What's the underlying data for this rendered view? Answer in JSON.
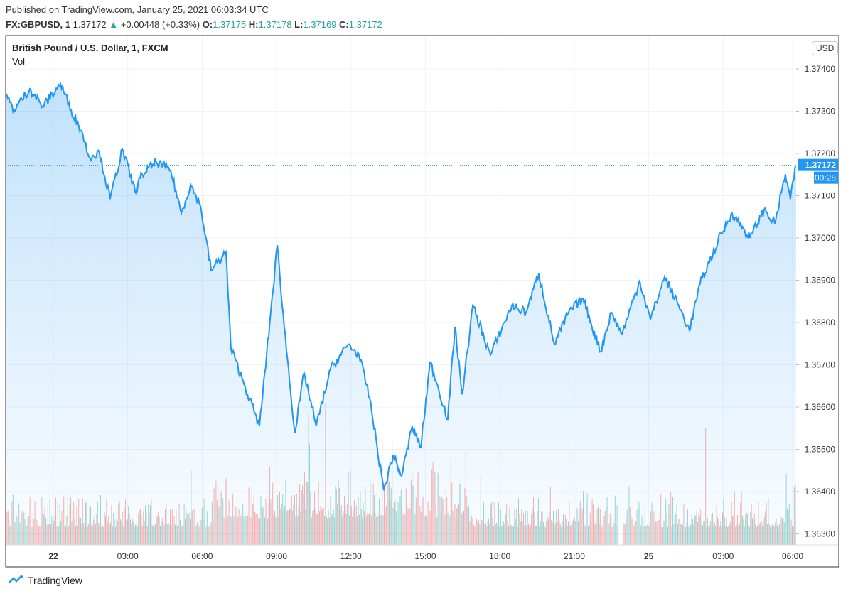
{
  "header": {
    "published": "Published on TradingView.com, January 25, 2021 06:03:34 UTC",
    "symbol": "FX:GBPUSD, 1",
    "last": "1.37172",
    "change": "+0.00448 (+0.33%)",
    "o_label": "O:",
    "o": "1.37175",
    "h_label": "H:",
    "h": "1.37178",
    "l_label": "L:",
    "l": "1.37169",
    "c_label": "C:",
    "c": "1.37172"
  },
  "legend": {
    "title": "British Pound / U.S. Dollar, 1, FXCM",
    "vol": "Vol"
  },
  "currency": "USD",
  "price_label": "1.37172",
  "countdown": "00:28",
  "footer": {
    "brand": "TradingView"
  },
  "colors": {
    "line": "#2196f3",
    "up": "#26a69a",
    "down": "#ef5350"
  },
  "chart_data": {
    "type": "area",
    "title": "British Pound / U.S. Dollar, 1, FXCM",
    "xlabel": "",
    "ylabel": "USD",
    "ylim": [
      1.3628,
      1.3748
    ],
    "yticks": [
      "1.37400",
      "1.37300",
      "1.37200",
      "1.37100",
      "1.37000",
      "1.36900",
      "1.36800",
      "1.36700",
      "1.36600",
      "1.36500",
      "1.36400",
      "1.36300"
    ],
    "xticks": [
      {
        "label": "22",
        "h": 0,
        "bold": true
      },
      {
        "label": "03:00",
        "h": 3
      },
      {
        "label": "06:00",
        "h": 6
      },
      {
        "label": "09:00",
        "h": 9
      },
      {
        "label": "12:00",
        "h": 12
      },
      {
        "label": "15:00",
        "h": 15
      },
      {
        "label": "18:00",
        "h": 18
      },
      {
        "label": "21:00",
        "h": 21
      },
      {
        "label": "25",
        "h": 24,
        "bold": true
      },
      {
        "label": "03:00",
        "h": 27
      },
      {
        "label": "06:00",
        "h": 29.8
      }
    ],
    "x_unit": "trading hours from Jan 22 00:00 (weekend gap removed)",
    "series": [
      {
        "name": "GBPUSD close",
        "points": [
          [
            -1.92,
            1.37336
          ],
          [
            -1.58,
            1.37303
          ],
          [
            -0.95,
            1.37353
          ],
          [
            -0.43,
            1.37311
          ],
          [
            0.29,
            1.37365
          ],
          [
            0.72,
            1.37303
          ],
          [
            1.15,
            1.37252
          ],
          [
            1.43,
            1.37193
          ],
          [
            1.86,
            1.37202
          ],
          [
            2.29,
            1.37092
          ],
          [
            2.78,
            1.3721
          ],
          [
            3.3,
            1.37109
          ],
          [
            3.58,
            1.37151
          ],
          [
            4.15,
            1.3718
          ],
          [
            4.73,
            1.3716
          ],
          [
            5.16,
            1.37059
          ],
          [
            5.53,
            1.37126
          ],
          [
            5.93,
            1.37076
          ],
          [
            6.36,
            1.36924
          ],
          [
            6.96,
            1.36966
          ],
          [
            7.16,
            1.36739
          ],
          [
            7.74,
            1.36647
          ],
          [
            8.31,
            1.36555
          ],
          [
            8.6,
            1.36723
          ],
          [
            9.03,
            1.36983
          ],
          [
            9.31,
            1.3679
          ],
          [
            9.74,
            1.36538
          ],
          [
            10.11,
            1.36681
          ],
          [
            10.6,
            1.36555
          ],
          [
            11.17,
            1.36689
          ],
          [
            11.89,
            1.36748
          ],
          [
            12.32,
            1.36723
          ],
          [
            12.75,
            1.36622
          ],
          [
            13.32,
            1.36403
          ],
          [
            13.7,
            1.36487
          ],
          [
            14.04,
            1.36437
          ],
          [
            14.47,
            1.36555
          ],
          [
            14.81,
            1.36504
          ],
          [
            15.19,
            1.36706
          ],
          [
            15.47,
            1.36655
          ],
          [
            15.9,
            1.36571
          ],
          [
            16.19,
            1.3679
          ],
          [
            16.48,
            1.3663
          ],
          [
            16.91,
            1.3684
          ],
          [
            17.62,
            1.36723
          ],
          [
            18.48,
            1.3684
          ],
          [
            19.05,
            1.36824
          ],
          [
            19.57,
            1.36916
          ],
          [
            20.2,
            1.36748
          ],
          [
            20.77,
            1.36824
          ],
          [
            21.35,
            1.36857
          ],
          [
            22.06,
            1.36731
          ],
          [
            22.49,
            1.36824
          ],
          [
            22.92,
            1.36773
          ],
          [
            23.64,
            1.36899
          ],
          [
            24.07,
            1.36807
          ],
          [
            24.64,
            1.36908
          ],
          [
            25.21,
            1.3684
          ],
          [
            25.64,
            1.36782
          ],
          [
            26.07,
            1.36891
          ],
          [
            26.79,
            1.36992
          ],
          [
            27.36,
            1.37059
          ],
          [
            28.08,
            1.37
          ],
          [
            28.65,
            1.37067
          ],
          [
            29.08,
            1.37034
          ],
          [
            29.51,
            1.37151
          ],
          [
            29.71,
            1.37092
          ],
          [
            29.94,
            1.37172
          ]
        ]
      }
    ],
    "last_price": 1.37172,
    "grid": true,
    "legend": "top-left"
  }
}
